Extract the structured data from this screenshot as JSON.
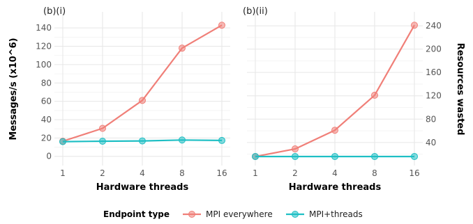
{
  "colors": {
    "mpi_everywhere": "#f07f78",
    "mpi_threads": "#1fbfc4"
  },
  "legend": {
    "title": "Endpoint type",
    "placement": "bottom"
  },
  "chart_data": [
    {
      "type": "line",
      "panel_label": "(b)(i)",
      "xlabel": "Hardware threads",
      "ylabel": "Messages/s (x10^6)",
      "categories": [
        "1",
        "2",
        "4",
        "8",
        "16"
      ],
      "y_axis_side": "left",
      "ylim": [
        -4,
        150
      ],
      "yticks": [
        0,
        20,
        40,
        60,
        80,
        100,
        120,
        140
      ],
      "grid": true,
      "series": [
        {
          "name": "MPI everywhere",
          "color": "#f07f78",
          "values": [
            16.5,
            30.5,
            61,
            118,
            143
          ]
        },
        {
          "name": "MPI+threads",
          "color": "#1fbfc4",
          "values": [
            16,
            16.5,
            16.8,
            17.8,
            17.3
          ]
        }
      ]
    },
    {
      "type": "line",
      "panel_label": "(b)(ii)",
      "xlabel": "Hardware threads",
      "ylabel": "Resources wasted",
      "categories": [
        "1",
        "2",
        "4",
        "8",
        "16"
      ],
      "y_axis_side": "right",
      "ylim": [
        10,
        252
      ],
      "yticks": [
        40,
        80,
        120,
        160,
        200,
        240
      ],
      "grid": true,
      "series": [
        {
          "name": "MPI everywhere",
          "color": "#f07f78",
          "values": [
            16,
            29,
            61,
            121,
            241
          ]
        },
        {
          "name": "MPI+threads",
          "color": "#1fbfc4",
          "values": [
            16,
            16,
            16,
            16,
            16
          ]
        }
      ]
    }
  ]
}
